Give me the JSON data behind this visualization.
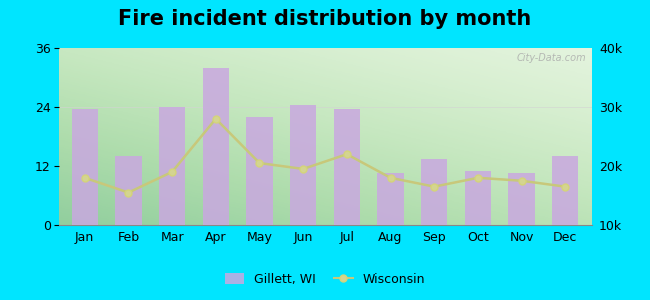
{
  "title": "Fire incident distribution by month",
  "months": [
    "Jan",
    "Feb",
    "Mar",
    "Apr",
    "May",
    "Jun",
    "Jul",
    "Aug",
    "Sep",
    "Oct",
    "Nov",
    "Dec"
  ],
  "gillett_values": [
    23.5,
    14,
    24,
    32,
    22,
    24.5,
    23.5,
    10.5,
    13.5,
    11,
    10.5,
    14
  ],
  "wisconsin_values": [
    18000,
    15500,
    19000,
    28000,
    20500,
    19500,
    22000,
    18000,
    16500,
    18000,
    17500,
    16500
  ],
  "bar_color": "#c9a8e0",
  "bar_alpha": 0.85,
  "line_color": "#c8c87a",
  "line_marker": "o",
  "line_marker_color": "#d4d47a",
  "line_marker_face": "#d4d490",
  "line_marker_size": 5,
  "background_outer": "#00e5ff",
  "ylim_left": [
    0,
    36
  ],
  "ylim_right": [
    10000,
    40000
  ],
  "yticks_left": [
    0,
    12,
    24,
    36
  ],
  "yticks_right": [
    10000,
    20000,
    30000,
    40000
  ],
  "ytick_right_labels": [
    "10k",
    "20k",
    "30k",
    "40k"
  ],
  "title_fontsize": 15,
  "tick_fontsize": 9,
  "legend_gillett": "Gillett, WI",
  "legend_wisconsin": "Wisconsin",
  "watermark": "City-Data.com"
}
